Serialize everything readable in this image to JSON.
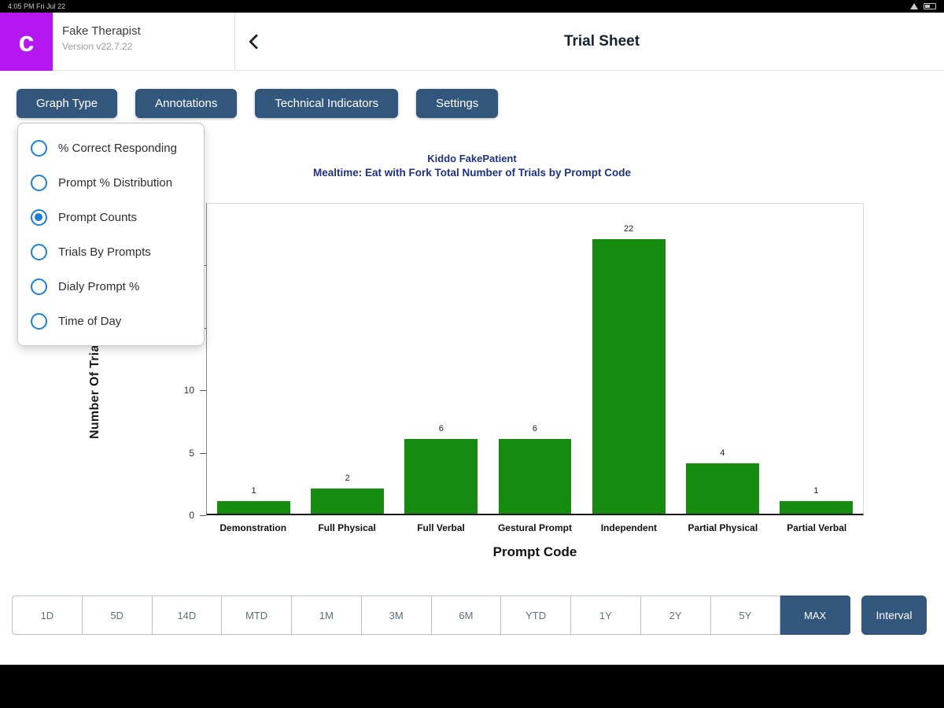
{
  "status_bar": {
    "time": "4:05 PM  Fri Jul 22"
  },
  "header": {
    "logo_letter": "c",
    "app_name": "Fake Therapist",
    "app_version": "Version v22.7.22",
    "title": "Trial Sheet"
  },
  "toolbar": {
    "buttons": [
      "Graph Type",
      "Annotations",
      "Technical Indicators",
      "Settings"
    ]
  },
  "graph_type_menu": {
    "options": [
      {
        "label": "% Correct Responding",
        "selected": false
      },
      {
        "label": "Prompt % Distribution",
        "selected": false
      },
      {
        "label": "Prompt Counts",
        "selected": true
      },
      {
        "label": "Trials By Prompts",
        "selected": false
      },
      {
        "label": "Dialy Prompt %",
        "selected": false
      },
      {
        "label": "Time of Day",
        "selected": false
      }
    ]
  },
  "chart_data": {
    "type": "bar",
    "title": "Kiddo FakePatient",
    "subtitle": "Mealtime: Eat with Fork Total Number of Trials by Prompt Code",
    "categories": [
      "Demonstration",
      "Full Physical",
      "Full Verbal",
      "Gestural Prompt",
      "Independent",
      "Partial Physical",
      "Partial Verbal"
    ],
    "values": [
      1,
      2,
      6,
      6,
      22,
      4,
      1
    ],
    "xlabel": "Prompt Code",
    "ylabel": "Number Of Trials",
    "ylim": [
      0,
      25
    ],
    "yticks": [
      0,
      5,
      10,
      15,
      20
    ],
    "bar_color": "#178a10",
    "grid": false,
    "legend": "none"
  },
  "interval_bar": {
    "items": [
      "1D",
      "5D",
      "14D",
      "MTD",
      "1M",
      "3M",
      "6M",
      "YTD",
      "1Y",
      "2Y",
      "5Y",
      "MAX"
    ],
    "selected": "MAX",
    "interval_button": "Interval"
  },
  "colors": {
    "accent": "#33567d",
    "bar": "#178a10",
    "radio": "#1a7fd6",
    "logo": "#b517f0",
    "chart_title": "#1f3282"
  }
}
